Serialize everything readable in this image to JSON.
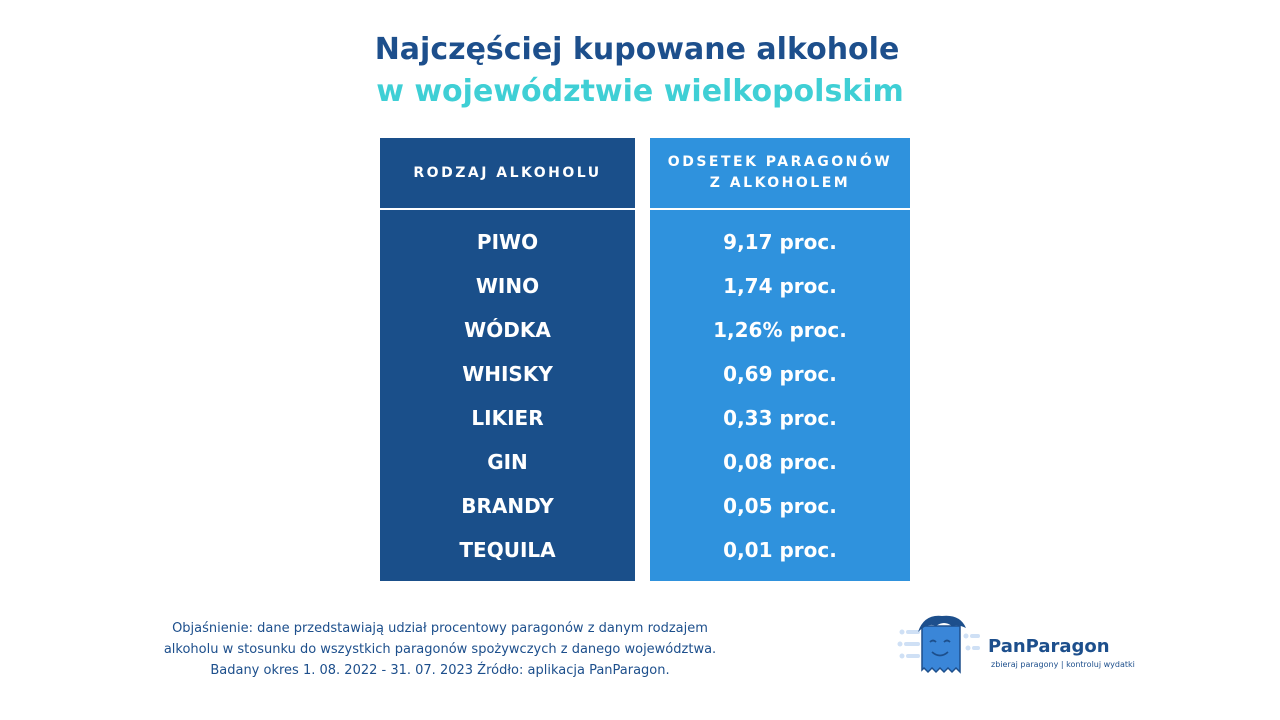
{
  "title": {
    "line1": "Najczęściej kupowane alkohole",
    "line2": "w województwie wielkopolskim"
  },
  "colors": {
    "title_primary": "#1d4f8c",
    "title_accent": "#3fcfd5",
    "left_column": "#1a4f8a",
    "right_column": "#2f92dd"
  },
  "chart_data": {
    "type": "table",
    "columns": [
      "RODZAJ ALKOHOLU",
      "ODSETEK PARAGONÓW Z ALKOHOLEM"
    ],
    "header_left": "RODZAJ ALKOHOLU",
    "header_right": "ODSETEK PARAGONÓW Z ALKOHOLEM",
    "categories": [
      "PIWO",
      "WINO",
      "WÓDKA",
      "WHISKY",
      "LIKIER",
      "GIN",
      "BRANDY",
      "TEQUILA"
    ],
    "values": [
      9.17,
      1.74,
      1.26,
      0.69,
      0.33,
      0.08,
      0.05,
      0.01
    ],
    "value_labels": [
      "9,17 proc.",
      "1,74 proc.",
      "1,26% proc.",
      "0,69 proc.",
      "0,33 proc.",
      "0,08 proc.",
      "0,05 proc.",
      "0,01 proc."
    ]
  },
  "footnote": {
    "line1": "Objaśnienie: dane przedstawiają udział procentowy paragonów z danym rodzajem",
    "line2": "alkoholu w stosunku do wszystkich paragonów spożywczych z danego województwa.",
    "line3": "Badany okres 1. 08. 2022 - 31. 07. 2023 Źródło: aplikacja PanParagon."
  },
  "brand": {
    "name": "PanParagon",
    "tagline": "zbieraj paragony | kontroluj wydatki",
    "icon": "receipt-mascot-logo"
  }
}
